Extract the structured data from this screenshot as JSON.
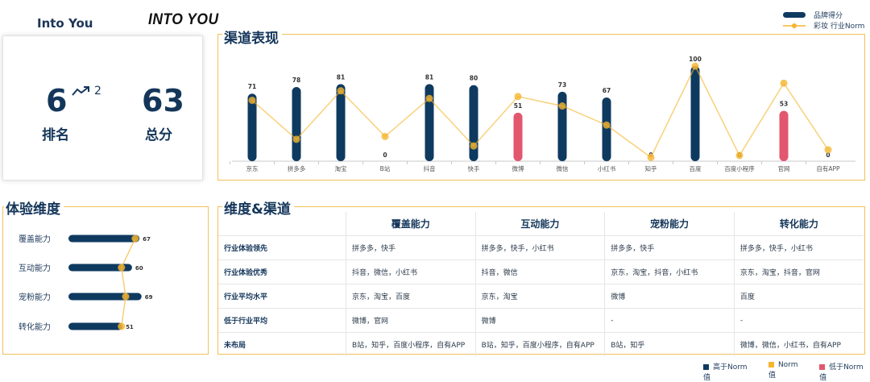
{
  "brand": {
    "name": "Into You",
    "logo_text": "INTO YOU"
  },
  "summary": {
    "rank_value": "6",
    "rank_change": "2",
    "rank_label": "排名",
    "score_value": "63",
    "score_label": "总分"
  },
  "colors": {
    "navy": "#0f3a60",
    "gold": "#f5b52e",
    "pink": "#e2576e",
    "panel_border": "#f0c25a"
  },
  "channel_panel": {
    "title": "渠道表现"
  },
  "experience_panel": {
    "title": "体验维度"
  },
  "matrix_panel": {
    "title": "维度&渠道"
  },
  "chart_data": [
    {
      "type": "bar",
      "title": "渠道表现",
      "legend_position": "top-right",
      "categories": [
        "京东",
        "拼多多",
        "淘宝",
        "B站",
        "抖音",
        "快手",
        "微博",
        "微信",
        "小红书",
        "知乎",
        "百度",
        "百度小程序",
        "官网",
        "自有APP"
      ],
      "series": [
        {
          "name": "品牌得分",
          "type": "bar",
          "values": [
            71,
            78,
            81,
            0,
            81,
            80,
            51,
            73,
            67,
            0,
            100,
            0,
            53,
            0
          ],
          "bar_colors": [
            "navy",
            "navy",
            "navy",
            "navy",
            "navy",
            "navy",
            "pink",
            "navy",
            "navy",
            "navy",
            "navy",
            "navy",
            "pink",
            "navy"
          ]
        },
        {
          "name": "彩妆 行业Norm",
          "type": "line",
          "values": [
            64,
            23,
            74,
            26,
            66,
            16,
            68,
            58,
            38,
            4,
            100,
            6,
            82,
            12
          ]
        }
      ],
      "ylim": [
        0,
        100
      ],
      "grid": false
    },
    {
      "type": "bar",
      "title": "体验维度",
      "orientation": "horizontal",
      "categories": [
        "覆盖能力",
        "互动能力",
        "宠粉能力",
        "转化能力"
      ],
      "series": [
        {
          "name": "brand",
          "type": "bar",
          "values": [
            67,
            60,
            69,
            51
          ]
        },
        {
          "name": "norm",
          "type": "line",
          "values": [
            63,
            50,
            54,
            50
          ]
        }
      ],
      "xlim": [
        0,
        73
      ]
    }
  ],
  "matrix": {
    "columns": [
      "覆盖能力",
      "互动能力",
      "宠粉能力",
      "转化能力"
    ],
    "rows": [
      {
        "label": "行业体验领先",
        "cells": [
          "拼多多，快手",
          "拼多多，快手，小红书",
          "拼多多，快手",
          "拼多多，快手，小红书"
        ]
      },
      {
        "label": "行业体验优秀",
        "cells": [
          "抖音，微信，小红书",
          "抖音，微信",
          "京东，淘宝，抖音，小红书",
          "京东，淘宝，抖音，官网"
        ]
      },
      {
        "label": "行业平均水平",
        "cells": [
          "京东，淘宝，百度",
          "京东，淘宝",
          "微博",
          "百度"
        ]
      },
      {
        "label": "低于行业平均",
        "cells": [
          "微博，官网",
          "微博",
          "-",
          "-"
        ]
      },
      {
        "label": "未布局",
        "cells": [
          "B站，知乎，百度小程序，自有APP",
          "B站，知乎，百度小程序，自有APP",
          "B站，知乎",
          "微博，微信，小红书，自有APP"
        ]
      }
    ]
  },
  "bottom_legend": [
    {
      "label": "高于Norm值",
      "color": "#0f3a60"
    },
    {
      "label": "Norm值",
      "color": "#f5b52e"
    },
    {
      "label": "低于Norm值",
      "color": "#e2576e"
    }
  ]
}
